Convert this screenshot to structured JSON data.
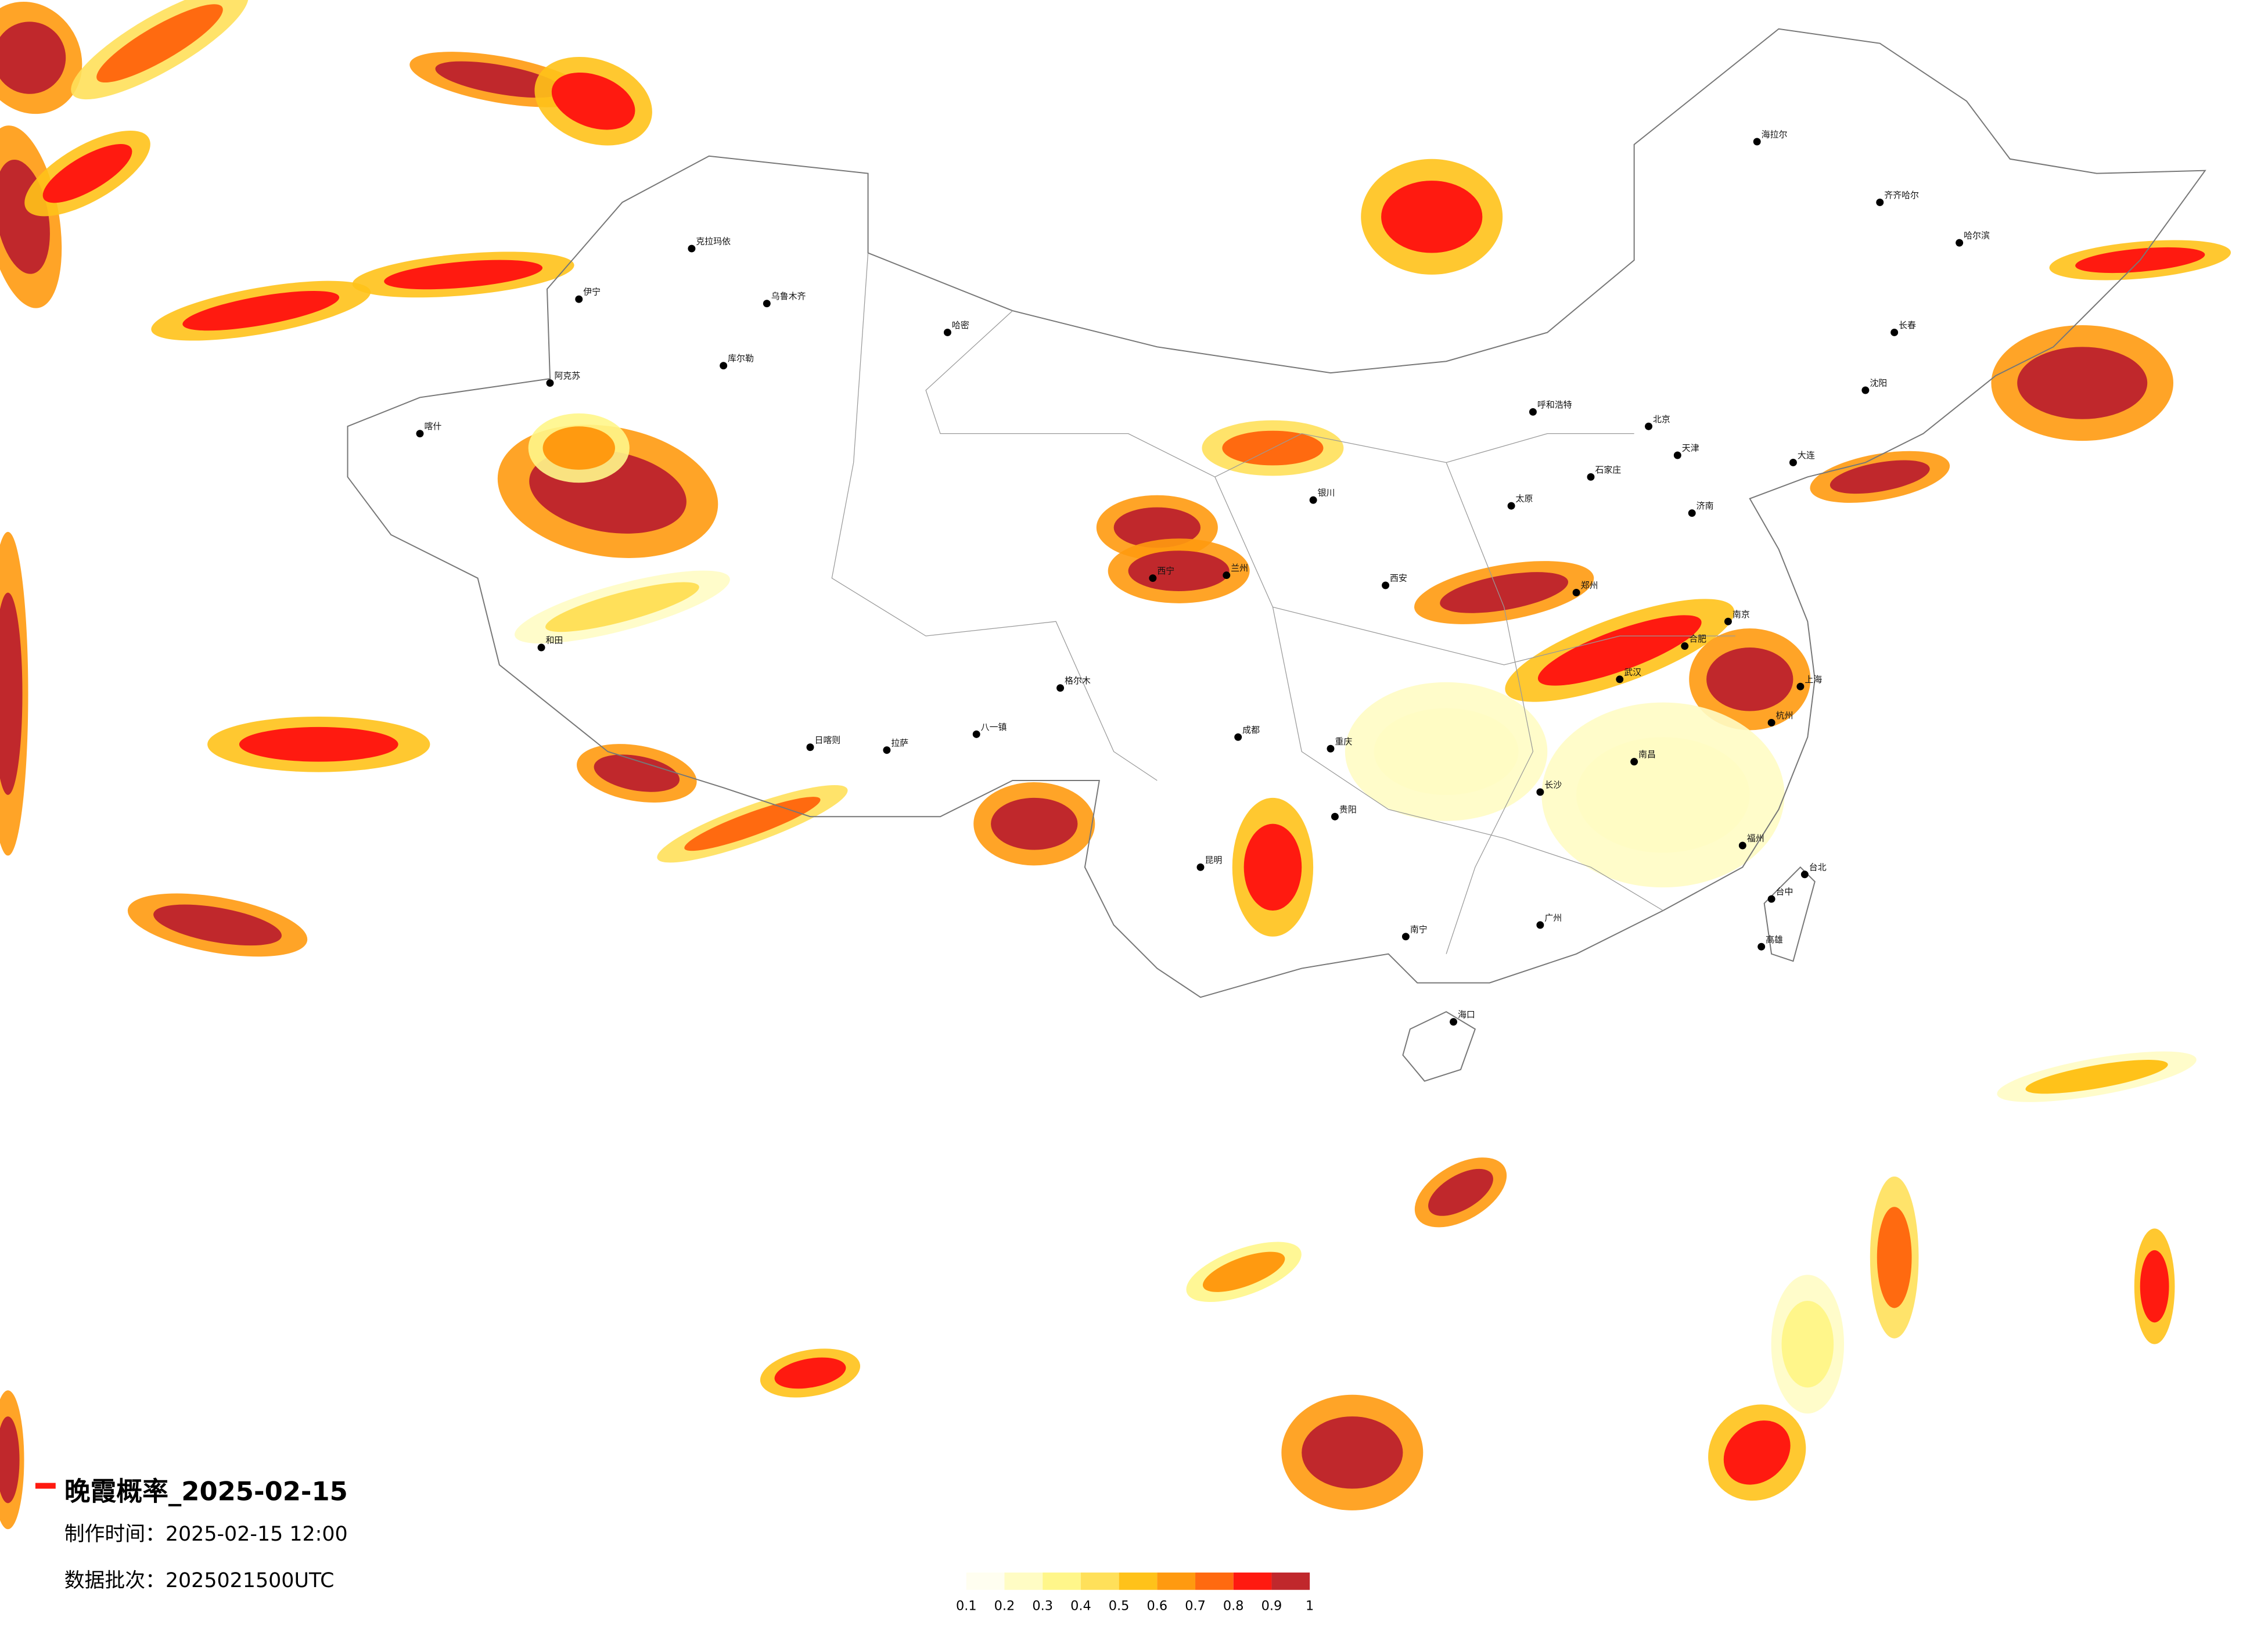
{
  "title": "晚霞概率_2025-02-15",
  "production_time": "制作时间：2025-02-15 12:00",
  "data_batch": "数据批次：2025021500UTC",
  "colorbar": {
    "ticks": [
      0.1,
      0.2,
      0.3,
      0.4,
      0.5,
      0.6,
      0.7,
      0.8,
      0.9,
      1
    ],
    "colors": [
      "#fffef0",
      "#fffcc4",
      "#fff68a",
      "#ffe05a",
      "#ffc21a",
      "#ff9a10",
      "#ff6a10",
      "#ff1a10",
      "#c0282c"
    ]
  },
  "cities": [
    "克拉玛依",
    "乌鲁木齐",
    "伊宁",
    "阿克苏",
    "库尔勒",
    "哈密",
    "喀什",
    "和田",
    "拉萨",
    "日喀则",
    "八一镇",
    "格尔木",
    "西宁",
    "兰州",
    "银川",
    "呼和浩特",
    "北京",
    "天津",
    "石家庄",
    "太原",
    "济南",
    "郑州",
    "西安",
    "成都",
    "重庆",
    "武汉",
    "长沙",
    "南昌",
    "合肥",
    "南京",
    "上海",
    "杭州",
    "福州",
    "台北",
    "广州",
    "南宁",
    "海口",
    "贵阳",
    "昆明",
    "哈尔滨",
    "长春",
    "沈阳",
    "大连",
    "齐齐哈尔",
    "海拉尔",
    "台中",
    "高雄"
  ]
}
